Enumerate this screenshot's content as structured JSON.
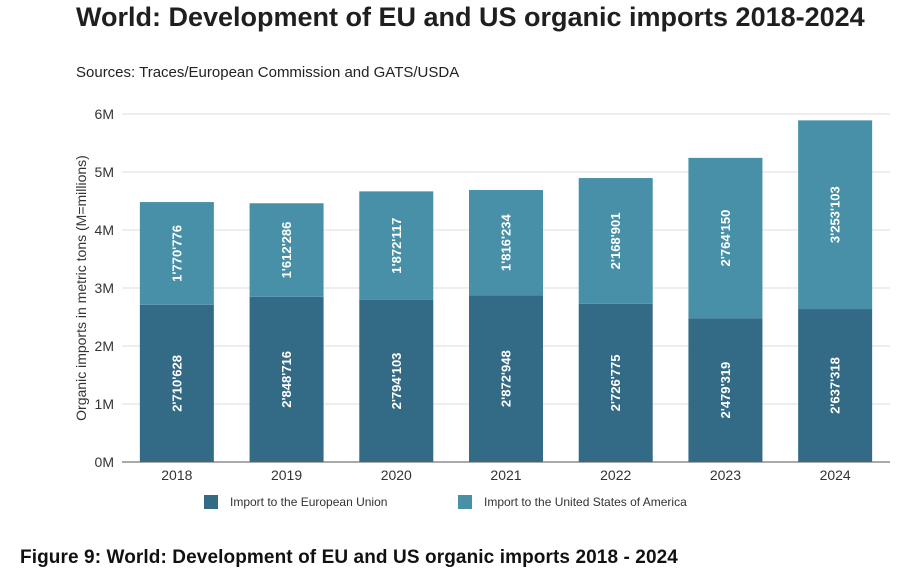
{
  "chart_data": {
    "type": "bar",
    "stacked": true,
    "title": "World: Development of EU and US organic imports 2018-2024",
    "subtitle": "Sources: Traces/European Commission and GATS/USDA",
    "ylabel": "Organic imports in metric tons (M=millions)",
    "xlabel": "",
    "ylim": [
      0,
      6000000
    ],
    "yticks": [
      0,
      1000000,
      2000000,
      3000000,
      4000000,
      5000000,
      6000000
    ],
    "ytick_labels": [
      "0M",
      "1M",
      "2M",
      "3M",
      "4M",
      "5M",
      "6M"
    ],
    "grid": true,
    "legend_position": "bottom",
    "categories": [
      "2018",
      "2019",
      "2020",
      "2021",
      "2022",
      "2023",
      "2024"
    ],
    "series": [
      {
        "name": "Import to the European Union",
        "color": "#336b87",
        "values": [
          2710628,
          2848716,
          2794103,
          2872948,
          2726775,
          2479319,
          2637318
        ],
        "labels": [
          "2'710'628",
          "2'848'716",
          "2'794'103",
          "2'872'948",
          "2'726'775",
          "2'479'319",
          "2'637'318"
        ]
      },
      {
        "name": "Import to the United States of America",
        "color": "#4790a8",
        "values": [
          1770776,
          1612286,
          1872117,
          1816234,
          2168901,
          2764150,
          3253103
        ],
        "labels": [
          "1'770'776",
          "1'612'286",
          "1'872'117",
          "1'816'234",
          "2'168'901",
          "2'764'150",
          "3'253'103"
        ]
      }
    ]
  },
  "caption": "Figure 9: World: Development of EU and US organic imports 2018 - 2024"
}
